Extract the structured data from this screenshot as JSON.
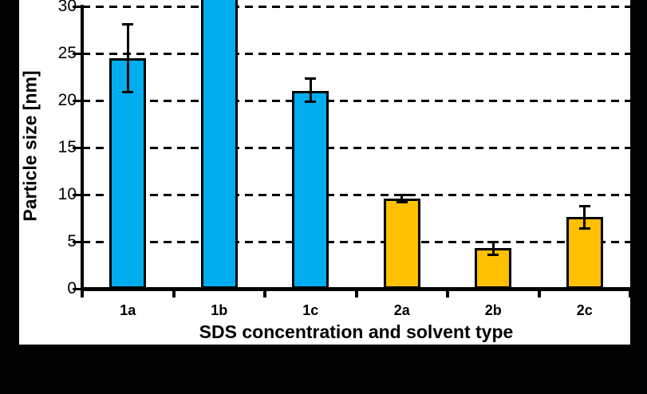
{
  "figure": {
    "background_color": "#000000",
    "chart_background_color": "#ffffff"
  },
  "chart_data": {
    "type": "bar",
    "title": "",
    "xlabel": "SDS concentration and solvent type",
    "ylabel": "Particle size [nm]",
    "ylim": [
      0,
      30
    ],
    "yticks": [
      0,
      5,
      10,
      15,
      20,
      25,
      30
    ],
    "grid": "horizontal dashed black lines at each y tick",
    "legend": "none",
    "categories": [
      "1a",
      "1b",
      "1c",
      "2a",
      "2b",
      "2c"
    ],
    "bar_colors": {
      "series1_blue": "#00AEEF",
      "series2_orange": "#FFC000"
    },
    "bars": [
      {
        "label": "1a",
        "value": 24.5,
        "error_low": 20.9,
        "error_high": 28.1,
        "color": "#00AEEF",
        "clipped": false
      },
      {
        "label": "1b",
        "value": 30,
        "color": "#00AEEF",
        "clipped": true,
        "note": "bar exceeds axis maximum; top cut off at 30+"
      },
      {
        "label": "1c",
        "value": 21.0,
        "error_low": 19.9,
        "error_high": 22.3,
        "color": "#00AEEF",
        "clipped": false
      },
      {
        "label": "2a",
        "value": 9.6,
        "error_low": 9.2,
        "error_high": 10.0,
        "color": "#FFC000",
        "clipped": false
      },
      {
        "label": "2b",
        "value": 4.3,
        "error_low": 3.6,
        "error_high": 5.0,
        "color": "#FFC000",
        "clipped": false
      },
      {
        "label": "2c",
        "value": 7.6,
        "error_low": 6.4,
        "error_high": 8.8,
        "color": "#FFC000",
        "clipped": false
      }
    ]
  }
}
